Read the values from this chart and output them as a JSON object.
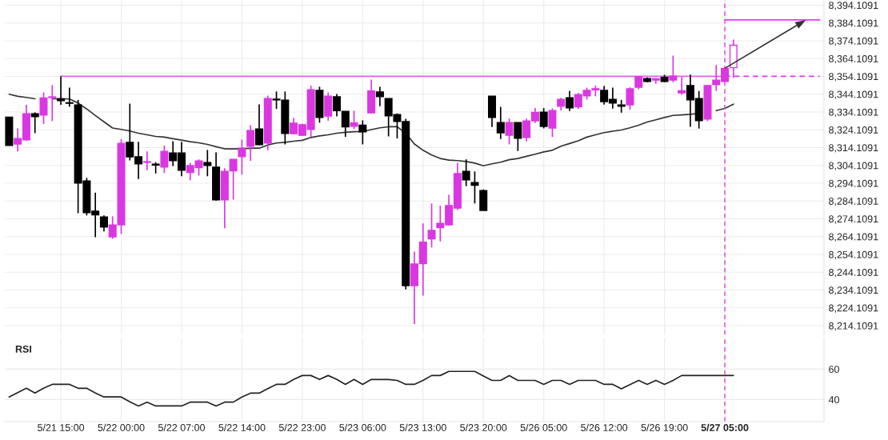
{
  "chart_data": [
    {
      "type": "candlestick",
      "categories": [
        null,
        null,
        null,
        null,
        null,
        null,
        "5/21 15:00",
        null,
        null,
        null,
        null,
        null,
        null,
        "5/22 00:00",
        null,
        null,
        null,
        null,
        null,
        null,
        "5/22 07:00",
        null,
        null,
        null,
        null,
        null,
        null,
        "5/22 14:00",
        null,
        null,
        null,
        null,
        null,
        null,
        "5/22 23:00",
        null,
        null,
        null,
        null,
        null,
        null,
        "5/23 06:00",
        null,
        null,
        null,
        null,
        null,
        null,
        "5/23 13:00",
        null,
        null,
        null,
        null,
        null,
        null,
        "5/23 20:00",
        null,
        null,
        null,
        null,
        null,
        null,
        "5/26 05:00",
        null,
        null,
        null,
        null,
        null,
        null,
        "5/26 12:00",
        null,
        null,
        null,
        null,
        null,
        null,
        "5/26 19:00",
        null,
        null,
        null,
        null,
        null,
        null,
        "5/27 05:00",
        null,
        null,
        null,
        null,
        null,
        null,
        null,
        null,
        null,
        null,
        null
      ],
      "ohlc": [
        [
          8331.2,
          8331.2,
          8315.3,
          8315.3
        ],
        [
          8316.1,
          8324.9,
          8311.9,
          8319.2
        ],
        [
          8318.5,
          8338.1,
          8317.9,
          8333.1
        ],
        [
          8333.1,
          8333.9,
          8322.2,
          8331.5
        ],
        [
          8332.4,
          8345.1,
          8327.3,
          8342.0
        ],
        [
          8342.2,
          8349.2,
          8329.0,
          8342.6
        ],
        [
          8341.5,
          8354.1,
          8338.1,
          8340.5
        ],
        [
          8339.3,
          8347.8,
          8337.0,
          8339.0
        ],
        [
          8338.1,
          8340.9,
          8277.3,
          8294.2
        ],
        [
          8295.4,
          8297.1,
          8276.0,
          8277.6
        ],
        [
          8278.4,
          8288.8,
          8263.8,
          8276.3
        ],
        [
          8275.2,
          8276.0,
          8267.0,
          8269.5
        ],
        [
          8264.0,
          8275.5,
          8262.9,
          8270.7
        ],
        [
          8270.7,
          8318.9,
          8265.6,
          8316.5
        ],
        [
          8317.0,
          8338.8,
          8306.9,
          8308.9
        ],
        [
          8308.9,
          8317.3,
          8296.5,
          8305.0
        ],
        [
          8305.8,
          8312.0,
          8301.4,
          8306.2
        ],
        [
          8304.8,
          8305.9,
          8299.6,
          8304.3
        ],
        [
          8303.2,
          8315.2,
          8299.8,
          8312.0
        ],
        [
          8311.1,
          8317.7,
          8303.7,
          8306.8
        ],
        [
          8311.1,
          8317.3,
          8298.0,
          8301.4
        ],
        [
          8300.1,
          8305.6,
          8295.7,
          8304.0
        ],
        [
          8302.8,
          8307.5,
          8298.4,
          8306.6
        ],
        [
          8305.7,
          8312.8,
          8298.0,
          8304.1
        ],
        [
          8303.1,
          8311.4,
          8284.3,
          8284.8
        ],
        [
          8284.8,
          8302.5,
          8268.8,
          8300.8
        ],
        [
          8301.0,
          8307.5,
          8284.9,
          8307.5
        ],
        [
          8309.0,
          8318.6,
          8298.9,
          8313.8
        ],
        [
          8314.9,
          8326.7,
          8306.6,
          8323.7
        ],
        [
          8324.6,
          8338.4,
          8315.3,
          8315.8
        ],
        [
          8316.7,
          8343.3,
          8312.6,
          8341.7
        ],
        [
          8341.3,
          8345.6,
          8335.8,
          8340.9
        ],
        [
          8340.8,
          8345.6,
          8315.9,
          8322.1
        ],
        [
          8321.9,
          8330.7,
          8321.6,
          8327.8
        ],
        [
          8321.0,
          8327.6,
          8320.7,
          8326.9
        ],
        [
          8324.3,
          8348.9,
          8320.1,
          8346.6
        ],
        [
          8346.2,
          8348.3,
          8328.1,
          8331.0
        ],
        [
          8331.8,
          8345.1,
          8329.2,
          8343.0
        ],
        [
          8342.6,
          8344.2,
          8331.6,
          8334.8
        ],
        [
          8334.5,
          8334.5,
          8320.1,
          8325.7
        ],
        [
          8326.1,
          8334.8,
          8324.6,
          8327.9
        ],
        [
          8326.7,
          8329.4,
          8315.9,
          8323.0
        ],
        [
          8333.6,
          8352.3,
          8333.3,
          8345.9
        ],
        [
          8345.3,
          8348.3,
          8337.3,
          8342.7
        ],
        [
          8341.7,
          8341.7,
          8320.4,
          8331.9
        ],
        [
          8332.7,
          8333.3,
          8319.2,
          8328.8
        ],
        [
          8328.7,
          8330.3,
          8234.5,
          8236.6
        ],
        [
          8236.6,
          8255.7,
          8215.0,
          8248.7
        ],
        [
          8248.9,
          8271.5,
          8231.0,
          8261.0
        ],
        [
          8262.8,
          8282.7,
          8258.0,
          8267.6
        ],
        [
          8269.1,
          8281.5,
          8261.4,
          8271.6
        ],
        [
          8270.7,
          8287.6,
          8270.3,
          8281.5
        ],
        [
          8280.1,
          8305.6,
          8279.0,
          8299.5
        ],
        [
          8300.8,
          8307.5,
          8292.4,
          8296.0
        ],
        [
          8294.5,
          8300.7,
          8282.7,
          8292.9
        ],
        [
          8290.0,
          8290.6,
          8278.8,
          8278.8
        ],
        [
          8343.0,
          8343.0,
          8325.7,
          8331.0
        ],
        [
          8328.2,
          8337.0,
          8318.9,
          8322.4
        ],
        [
          8321.0,
          8330.4,
          8315.9,
          8328.2
        ],
        [
          8328.2,
          8328.2,
          8312.2,
          8319.4
        ],
        [
          8319.8,
          8330.4,
          8317.6,
          8329.1
        ],
        [
          8329.1,
          8336.3,
          8327.9,
          8333.9
        ],
        [
          8334.0,
          8336.3,
          8324.9,
          8326.0
        ],
        [
          8325.1,
          8336.1,
          8320.1,
          8334.9
        ],
        [
          8337.3,
          8342.1,
          8334.9,
          8341.2
        ],
        [
          8342.1,
          8346.0,
          8334.6,
          8336.4
        ],
        [
          8337.0,
          8344.8,
          8335.8,
          8343.9
        ],
        [
          8343.2,
          8347.8,
          8341.1,
          8346.2
        ],
        [
          8346.5,
          8348.9,
          8342.9,
          8347.2
        ],
        [
          8346.2,
          8348.7,
          8338.2,
          8339.9
        ],
        [
          8341.2,
          8347.8,
          8336.0,
          8339.1
        ],
        [
          8338.1,
          8340.9,
          8333.7,
          8337.3
        ],
        [
          8338.1,
          8348.0,
          8335.4,
          8347.1
        ],
        [
          8348.0,
          8353.9,
          8346.8,
          8353.9
        ],
        [
          8352.9,
          8353.5,
          8350.8,
          8351.3
        ],
        [
          8352.0,
          8353.1,
          8349.9,
          8352.8
        ],
        [
          8353.5,
          8355.0,
          8350.8,
          8351.3
        ],
        [
          8352.0,
          8365.8,
          8350.8,
          8354.2
        ],
        [
          8344.8,
          8353.8,
          8343.8,
          8346.0
        ],
        [
          8348.9,
          8355.1,
          8325.8,
          8340.9
        ],
        [
          8341.7,
          8345.9,
          8324.8,
          8329.2
        ],
        [
          8330.1,
          8349.2,
          8329.0,
          8348.9
        ],
        [
          8349.5,
          8360.5,
          8345.9,
          8352.0
        ],
        [
          8351.3,
          8358.6,
          8351.3,
          8358.6
        ],
        [
          8359.0,
          8374.8,
          8353.2,
          8371.6
        ],
        null,
        null,
        null,
        null,
        null,
        null,
        null,
        null,
        null,
        null
      ],
      "colors": [
        "#000000",
        "#da37e2",
        "#da37e2",
        "#000000",
        "#da37e2",
        "#da37e2",
        "#000000",
        "#000000",
        "#000000",
        "#000000",
        "#000000",
        "#000000",
        "#da37e2",
        "#da37e2",
        "#000000",
        "#000000",
        "#da37e2",
        "#000000",
        "#da37e2",
        "#000000",
        "#000000",
        "#da37e2",
        "#da37e2",
        "#000000",
        "#000000",
        "#da37e2",
        "#da37e2",
        "#da37e2",
        "#da37e2",
        "#000000",
        "#da37e2",
        "#000000",
        "#000000",
        "#da37e2",
        "#da37e2",
        "#da37e2",
        "#000000",
        "#da37e2",
        "#000000",
        "#000000",
        "#da37e2",
        "#000000",
        "#da37e2",
        "#000000",
        "#000000",
        "#000000",
        "#000000",
        "#da37e2",
        "#da37e2",
        "#da37e2",
        "#da37e2",
        "#da37e2",
        "#da37e2",
        "#000000",
        "#000000",
        "#000000",
        "#000000",
        "#000000",
        "#da37e2",
        "#000000",
        "#da37e2",
        "#da37e2",
        "#000000",
        "#da37e2",
        "#da37e2",
        "#000000",
        "#da37e2",
        "#da37e2",
        "#da37e2",
        "#000000",
        "#000000",
        "#000000",
        "#da37e2",
        "#da37e2",
        "#000000",
        "#da37e2",
        "#000000",
        "#da37e2",
        "#da37e2",
        "#000000",
        "#000000",
        "#da37e2",
        "#da37e2",
        "#da37e2",
        "#ffffff",
        null,
        null,
        null,
        null,
        null,
        null,
        null,
        null,
        null,
        null
      ],
      "series": [
        {
          "type": "line",
          "color": "#333333",
          "values": [
            8344.1,
            8342.9,
            8342.3,
            8341.5,
            null,
            8341.5,
            8341.5,
            8341.4,
            8339.1,
            8335.8,
            8332.1,
            8328.6,
            8325.1,
            8324.3,
            8323.4,
            8322.2,
            8321.3,
            8320.4,
            8320.0,
            8319.1,
            8318.3,
            8317.4,
            8316.8,
            8315.9,
            8314.6,
            8313.4,
            8313.4,
            8313.5,
            8313.7,
            8313.8,
            8315.6,
            8316.7,
            8317.1,
            8317.7,
            8318.2,
            8319.8,
            8320.7,
            8321.3,
            8322.2,
            8322.7,
            8323.0,
            8323.1,
            8324.2,
            8325.2,
            8325.8,
            8325.8,
            8322.1,
            8316.1,
            8312.6,
            8309.9,
            8308.0,
            8307.1,
            8306.8,
            8306.3,
            8305.4,
            8303.9,
            8305.0,
            8305.9,
            8307.3,
            8308.0,
            8309.2,
            8310.4,
            8311.7,
            8312.6,
            8314.9,
            8316.4,
            8317.9,
            8320.0,
            8321.3,
            8322.5,
            8323.3,
            8324.0,
            8325.2,
            8326.7,
            8328.5,
            8329.7,
            8331.0,
            8332.2,
            8332.5,
            8332.8,
            8333.3,
            null,
            8334.9,
            8336.1,
            8338.5,
            null,
            null,
            null,
            null,
            null,
            null,
            null,
            null,
            null,
            null
          ]
        },
        {
          "type": "line",
          "color": "#e45fec",
          "values": [
            null,
            null,
            null,
            null,
            null,
            null,
            8354.1091,
            8354.1091,
            8354.1091,
            8354.1091,
            8354.1091,
            8354.1091,
            8354.1091,
            8354.1091,
            8354.1091,
            8354.1091,
            8354.1091,
            8354.1091,
            8354.1091,
            8354.1091,
            8354.1091,
            8354.1091,
            8354.1091,
            8354.1091,
            8354.1091,
            8354.1091,
            8354.1091,
            8354.1091,
            8354.1091,
            8354.1091,
            8354.1091,
            8354.1091,
            8354.1091,
            8354.1091,
            8354.1091,
            8354.1091,
            8354.1091,
            8354.1091,
            8354.1091,
            8354.1091,
            8354.1091,
            8354.1091,
            8354.1091,
            8354.1091,
            8354.1091,
            8354.1091,
            8354.1091,
            8354.1091,
            8354.1091,
            8354.1091,
            8354.1091,
            8354.1091,
            8354.1091,
            8354.1091,
            8354.1091,
            8354.1091,
            8354.1091,
            8354.1091,
            8354.1091,
            8354.1091,
            8354.1091,
            8354.1091,
            8354.1091,
            8354.1091,
            8354.1091,
            8354.1091,
            8354.1091,
            8354.1091,
            8354.1091,
            8354.1091,
            8354.1091,
            8354.1091,
            8354.1091,
            8354.1091,
            8354.1091,
            8354.1091,
            8354.1091,
            8354.1091,
            8354.1091,
            8354.1091,
            8354.1091,
            8354.1091,
            8354.1091,
            8354.1091,
            null,
            null,
            null,
            null,
            null,
            null,
            null,
            null,
            null,
            null,
            null
          ]
        },
        {
          "type": "line",
          "color": "#e33ae9",
          "line_style": "dashed",
          "values": [
            null,
            null,
            null,
            null,
            null,
            null,
            null,
            null,
            null,
            null,
            null,
            null,
            null,
            null,
            null,
            null,
            null,
            null,
            null,
            null,
            null,
            null,
            null,
            null,
            null,
            null,
            null,
            null,
            null,
            null,
            null,
            null,
            null,
            null,
            null,
            null,
            null,
            null,
            null,
            null,
            null,
            null,
            null,
            null,
            null,
            null,
            null,
            null,
            null,
            null,
            null,
            null,
            null,
            null,
            null,
            null,
            null,
            null,
            null,
            null,
            null,
            null,
            null,
            null,
            null,
            null,
            null,
            null,
            null,
            null,
            null,
            null,
            null,
            null,
            null,
            null,
            null,
            null,
            null,
            null,
            null,
            null,
            null,
            8354.1091,
            8354.1091,
            8354.1091,
            8354.1091,
            8354.1091,
            8354.1091,
            8354.1091,
            8354.1091,
            8354.1091,
            8354.1091,
            8354.1091,
            8354.1091
          ]
        },
        {
          "type": "line",
          "color": "#e33ae9",
          "values": [
            null,
            null,
            null,
            null,
            null,
            null,
            null,
            null,
            null,
            null,
            null,
            null,
            null,
            null,
            null,
            null,
            null,
            null,
            null,
            null,
            null,
            null,
            null,
            null,
            null,
            null,
            null,
            null,
            null,
            null,
            null,
            null,
            null,
            null,
            null,
            null,
            null,
            null,
            null,
            null,
            null,
            null,
            null,
            null,
            null,
            null,
            null,
            null,
            null,
            null,
            null,
            null,
            null,
            null,
            null,
            null,
            null,
            null,
            null,
            null,
            null,
            null,
            null,
            null,
            null,
            null,
            null,
            null,
            null,
            null,
            null,
            null,
            null,
            null,
            null,
            null,
            null,
            null,
            null,
            null,
            null,
            null,
            null,
            8385.8,
            8385.8,
            8385.8,
            8385.8,
            8385.8,
            8385.8,
            8385.8,
            8385.8,
            8385.8,
            8385.8,
            8385.8,
            8385.8
          ]
        }
      ],
      "ref_lines": [
        {
          "axis": "x",
          "value": "5/27 05:00",
          "color": "#e33ae9",
          "line_style": "dashed"
        }
      ],
      "ylim": [
        8209,
        8397
      ],
      "yticks": [
        {
          "value": 8214.1091,
          "label": "8,214.1091"
        },
        {
          "value": 8224.1091,
          "label": "8,224.1091"
        },
        {
          "value": 8234.1091,
          "label": "8,234.1091"
        },
        {
          "value": 8244.1091,
          "label": "8,244.1091"
        },
        {
          "value": 8254.1091,
          "label": "8,254.1091"
        },
        {
          "value": 8264.1091,
          "label": "8,264.1091"
        },
        {
          "value": 8274.1091,
          "label": "8,274.1091"
        },
        {
          "value": 8284.1091,
          "label": "8,284.1091"
        },
        {
          "value": 8294.1091,
          "label": "8,294.1091"
        },
        {
          "value": 8304.1091,
          "label": "8,304.1091"
        },
        {
          "value": 8314.1091,
          "label": "8,314.1091"
        },
        {
          "value": 8324.1091,
          "label": "8,324.1091"
        },
        {
          "value": 8334.1091,
          "label": "8,334.1091"
        },
        {
          "value": 8344.1091,
          "label": "8,344.1091"
        },
        {
          "value": 8354.1091,
          "label": "8,354.1091"
        },
        {
          "value": 8364.1091,
          "label": "8,364.1091"
        },
        {
          "value": 8374.1091,
          "label": "8,374.1091"
        },
        {
          "value": 8384.1091,
          "label": "8,384.1091"
        },
        {
          "value": 8394.1091,
          "label": "8,394.1091"
        }
      ],
      "grid": true,
      "tick_labels": "y"
    },
    {
      "type": "line",
      "title": "RSI",
      "categories": [
        null,
        null,
        null,
        null,
        null,
        null,
        "5/21 15:00",
        null,
        null,
        null,
        null,
        null,
        null,
        "5/22 00:00",
        null,
        null,
        null,
        null,
        null,
        null,
        "5/22 07:00",
        null,
        null,
        null,
        null,
        null,
        null,
        "5/22 14:00",
        null,
        null,
        null,
        null,
        null,
        null,
        "5/22 23:00",
        null,
        null,
        null,
        null,
        null,
        null,
        "5/23 06:00",
        null,
        null,
        null,
        null,
        null,
        null,
        "5/23 13:00",
        null,
        null,
        null,
        null,
        null,
        null,
        "5/23 20:00",
        null,
        null,
        null,
        null,
        null,
        null,
        "5/26 05:00",
        null,
        null,
        null,
        null,
        null,
        null,
        "5/26 12:00",
        null,
        null,
        null,
        null,
        null,
        null,
        "5/26 19:00",
        null,
        null,
        null,
        null,
        null,
        null,
        "5/27 05:00",
        null,
        null,
        null,
        null,
        null,
        null,
        null,
        null,
        null,
        null,
        null
      ],
      "series": [
        {
          "color": "#222222",
          "values": [
            41.7,
            44.5,
            47.4,
            44.3,
            47.5,
            50.0,
            50.0,
            50.0,
            47.4,
            47.4,
            44.3,
            41.7,
            41.7,
            41.7,
            38.5,
            35.8,
            38.3,
            35.8,
            35.8,
            35.8,
            35.8,
            38.3,
            38.3,
            38.3,
            35.8,
            38.3,
            38.3,
            41.7,
            44.2,
            44.2,
            47.2,
            50.0,
            50.0,
            53.2,
            55.8,
            55.8,
            53.2,
            55.8,
            53.2,
            50.0,
            53.2,
            50.0,
            53.2,
            53.2,
            53.2,
            52.6,
            50.0,
            50.0,
            52.6,
            55.8,
            55.8,
            58.5,
            58.5,
            58.5,
            58.5,
            55.5,
            52.6,
            52.6,
            55.7,
            52.6,
            52.6,
            52.6,
            50.0,
            52.6,
            52.6,
            50.0,
            52.6,
            52.6,
            52.6,
            50.0,
            50.0,
            47.0,
            49.8,
            52.6,
            50.0,
            52.6,
            50.0,
            52.6,
            55.8,
            55.8,
            55.8,
            55.8,
            55.8,
            55.8,
            55.8,
            null,
            null,
            null,
            null,
            null,
            null,
            null,
            null,
            null,
            null
          ]
        }
      ],
      "ref_lines": [
        {
          "axis": "x",
          "value": "5/27 05:00",
          "color": "#e33ae9",
          "line_style": "dashed"
        }
      ],
      "ylim": [
        25.5,
        80.5
      ],
      "yticks": [
        40,
        60
      ],
      "grid": true
    }
  ]
}
